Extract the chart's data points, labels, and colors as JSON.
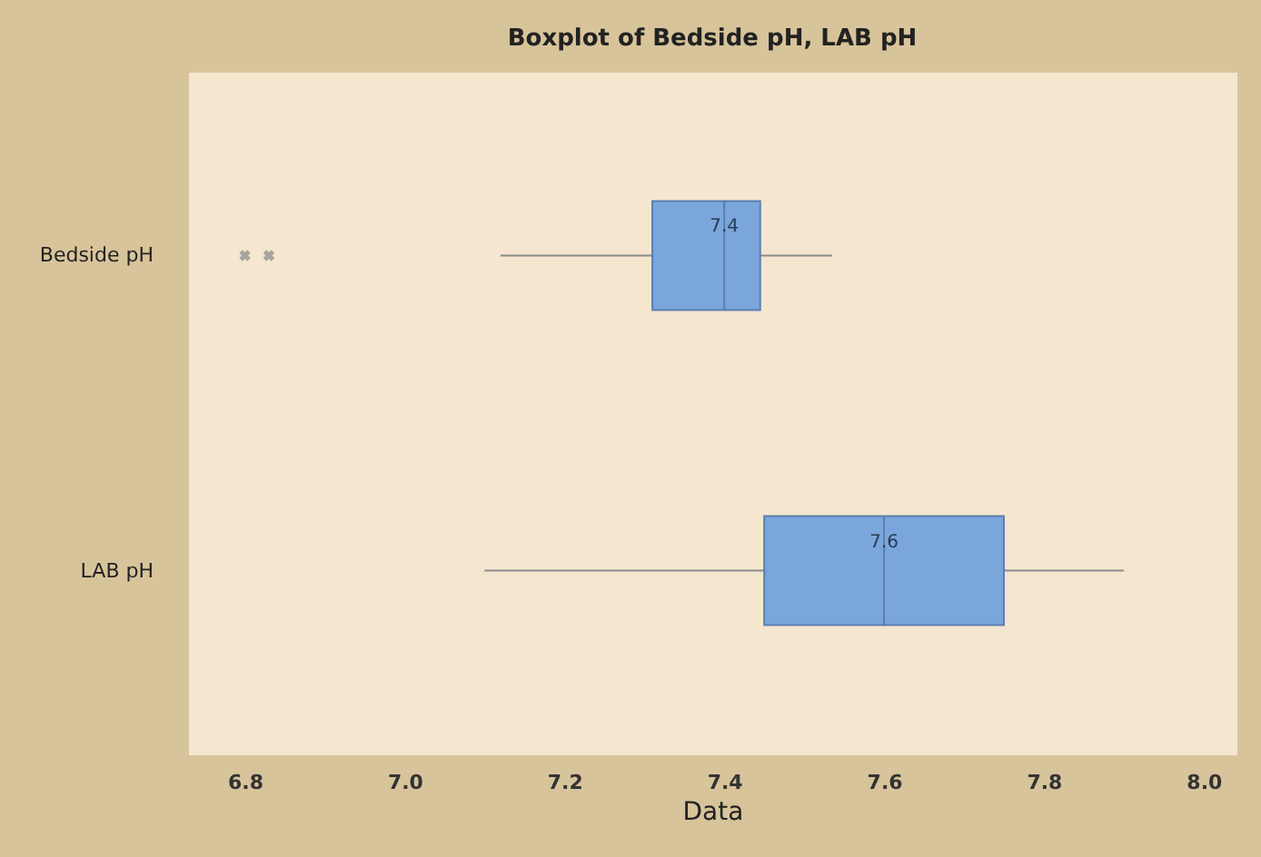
{
  "chart_data": {
    "type": "box",
    "title": "Boxplot of Bedside pH, LAB pH",
    "xlabel": "Data",
    "orientation": "horizontal",
    "color": "#7aa6dc",
    "categories": [
      "Bedside pH",
      "LAB pH"
    ],
    "boxes": [
      {
        "low": 7.12,
        "q1": 7.31,
        "median": 7.4,
        "q3": 7.445,
        "high": 7.535,
        "outliers": [
          6.8,
          6.83
        ]
      },
      {
        "low": 7.1,
        "q1": 7.45,
        "median": 7.6,
        "q3": 7.75,
        "high": 7.9
      }
    ],
    "annotations": [
      {
        "text": "7.4",
        "x": 7.4,
        "y": "Bedside pH"
      },
      {
        "text": "7.6",
        "x": 7.6,
        "y": "LAB pH"
      }
    ],
    "xlim": [
      6.73,
      8.04
    ],
    "xticks": [
      6.8,
      {
        "value": 7,
        "label": "7.0"
      },
      7.2,
      7.4,
      7.6,
      7.8,
      {
        "value": 8,
        "label": "8.0"
      }
    ]
  }
}
